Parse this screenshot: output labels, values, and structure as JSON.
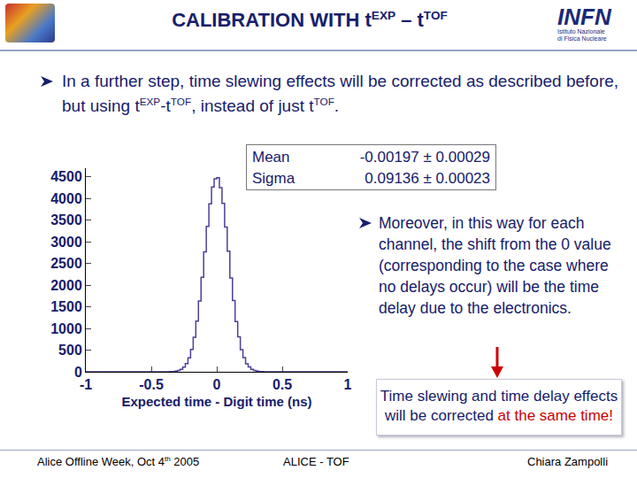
{
  "header": {
    "title": [
      "CALIBRATION WITH t",
      {
        "sup": "EXP"
      },
      " – t",
      {
        "sup": "TOF"
      }
    ],
    "logo": {
      "name": "INFN",
      "subtitle": [
        "Istituto Nazionale",
        "di Fisica Nucleare"
      ]
    }
  },
  "bullet": [
    "In a further step, time slewing effects will be corrected as described before, but using t",
    {
      "sup": "EXP"
    },
    "-t",
    {
      "sup": "TOF"
    },
    ", instead of just t",
    {
      "sup": "TOF"
    },
    "."
  ],
  "chart_data": {
    "type": "histogram",
    "color": "#4b3f9a",
    "x_label": "Expected time - Digit time (ns)",
    "bins": [
      -1,
      -0.98,
      -0.96,
      -0.94,
      -0.92,
      -0.9,
      -0.88,
      -0.86,
      -0.84,
      -0.82,
      -0.8,
      -0.78,
      -0.76,
      -0.74,
      -0.72,
      -0.7,
      -0.68,
      -0.66,
      -0.64,
      -0.62,
      -0.6,
      -0.58,
      -0.56,
      -0.54,
      -0.52,
      -0.5,
      -0.48,
      -0.46,
      -0.44,
      -0.42,
      -0.4,
      -0.38,
      -0.36,
      -0.34,
      -0.32,
      -0.3,
      -0.28,
      -0.26,
      -0.24,
      -0.22,
      -0.2,
      -0.18,
      -0.16,
      -0.14,
      -0.12,
      -0.1,
      -0.08,
      -0.06,
      -0.04,
      -0.02,
      0,
      0.02,
      0.04,
      0.06,
      0.08,
      0.1,
      0.12,
      0.14,
      0.16,
      0.18,
      0.2,
      0.22,
      0.24,
      0.26,
      0.28,
      0.3,
      0.32,
      0.34,
      0.36,
      0.38,
      0.4,
      0.42,
      0.44,
      0.46,
      0.48,
      0.5,
      0.52,
      0.54,
      0.56,
      0.58,
      0.6,
      0.62,
      0.64,
      0.66,
      0.68,
      0.7,
      0.72,
      0.74,
      0.76,
      0.78,
      0.8,
      0.82,
      0.84,
      0.86,
      0.88,
      0.9,
      0.92,
      0.94,
      0.96,
      0.98,
      1
    ],
    "counts": [
      0,
      0,
      0,
      0,
      0,
      0,
      0,
      0,
      0,
      0,
      0,
      0,
      0,
      0,
      0,
      0,
      0,
      0,
      0,
      0,
      0,
      0,
      0,
      0,
      0,
      0,
      0,
      0,
      0,
      0,
      0,
      1,
      3,
      7,
      14,
      29,
      57,
      107,
      189,
      321,
      518,
      797,
      1170,
      1636,
      2180,
      2771,
      3356,
      3875,
      4264,
      4455,
      4480,
      4250,
      3890,
      3340,
      2785,
      2165,
      1645,
      1160,
      805,
      512,
      326,
      185,
      110,
      55,
      30,
      13,
      7,
      3,
      1,
      0,
      0,
      0,
      0,
      0,
      0,
      0,
      0,
      0,
      0,
      0,
      0,
      0,
      0,
      0,
      0,
      0,
      0,
      0,
      0,
      0,
      0,
      0,
      0,
      0,
      0,
      0,
      0,
      0,
      0,
      0,
      0
    ],
    "xlim": [
      -1,
      1
    ],
    "xticks": [
      -1,
      -0.5,
      0,
      0.5,
      1
    ],
    "ylim": [
      0,
      4700
    ],
    "yticks": [
      0,
      500,
      1000,
      1500,
      2000,
      2500,
      3000,
      3500,
      4000,
      4500
    ],
    "grid": false
  },
  "stats_box": [
    {
      "label": "Mean",
      "value": "-0.00197 ± 0.00029"
    },
    {
      "label": "Sigma",
      "value": "0.09136 ± 0.00023"
    }
  ],
  "side_bullet": "Moreover, in this way for each channel, the shift from the 0 value (corresponding to the case where no delays occur) will be the time delay due to the electronics.",
  "callout": [
    {
      "text": "Time slewing and time delay effects will be corrected ",
      "color": "#17206b"
    },
    {
      "text": "at the same time!",
      "color": "#cc0000"
    }
  ],
  "footer": {
    "left": [
      "Alice Offline Week, Oct 4",
      {
        "sup": "th"
      },
      " 2005"
    ],
    "center": "ALICE - TOF",
    "right": "Chiara Zampolli"
  }
}
